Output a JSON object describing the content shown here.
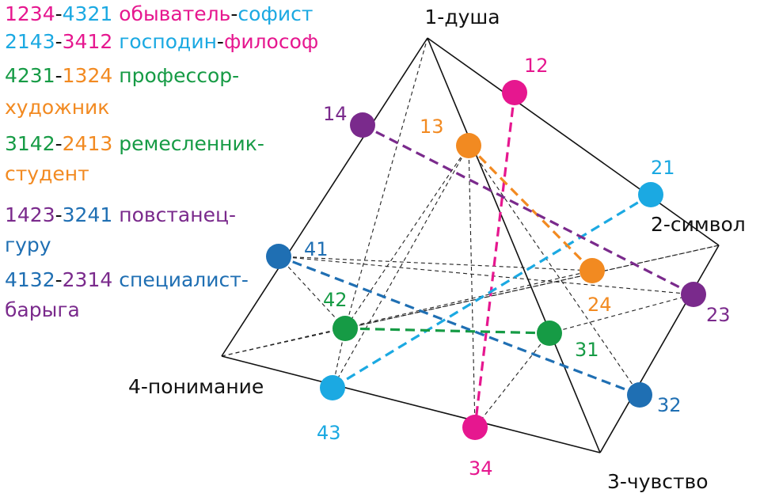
{
  "colors": {
    "magenta": "#e6178f",
    "cyan": "#1ba9e2",
    "green": "#169b45",
    "orange": "#f28a21",
    "purple": "#7a2a8c",
    "blue": "#1f6fb3",
    "black": "#111111"
  },
  "legend": [
    {
      "lines": [
        [
          {
            "t": "1234",
            "c": "magenta"
          },
          {
            "t": "-",
            "c": "black"
          },
          {
            "t": "4321",
            "c": "cyan"
          },
          {
            "t": " обыватель",
            "c": "magenta"
          },
          {
            "t": "-",
            "c": "black"
          },
          {
            "t": "софист",
            "c": "cyan"
          }
        ]
      ]
    },
    {
      "lines": [
        [
          {
            "t": "2143",
            "c": "cyan"
          },
          {
            "t": "-",
            "c": "black"
          },
          {
            "t": "3412",
            "c": "magenta"
          },
          {
            "t": " господин",
            "c": "cyan"
          },
          {
            "t": "-",
            "c": "black"
          },
          {
            "t": "философ",
            "c": "magenta"
          }
        ]
      ]
    },
    {
      "lines": [
        [
          {
            "t": "4231",
            "c": "green"
          },
          {
            "t": "-",
            "c": "black"
          },
          {
            "t": "1324",
            "c": "orange"
          },
          {
            "t": " профессор-",
            "c": "green"
          }
        ],
        [
          {
            "t": "художник",
            "c": "orange"
          }
        ]
      ]
    },
    {
      "lines": [
        [
          {
            "t": "3142",
            "c": "green"
          },
          {
            "t": "-",
            "c": "black"
          },
          {
            "t": "2413",
            "c": "orange"
          },
          {
            "t": " ремесленник-",
            "c": "green"
          }
        ],
        [
          {
            "t": "студент",
            "c": "orange"
          }
        ]
      ]
    },
    {
      "lines": [
        [
          {
            "t": "1423",
            "c": "purple"
          },
          {
            "t": "-",
            "c": "black"
          },
          {
            "t": "3241",
            "c": "blue"
          },
          {
            "t": " повстанец-",
            "c": "purple"
          }
        ],
        [
          {
            "t": "гуру",
            "c": "blue"
          }
        ]
      ]
    },
    {
      "lines": [
        [
          {
            "t": "4132",
            "c": "blue"
          },
          {
            "t": "-",
            "c": "black"
          },
          {
            "t": "2314",
            "c": "purple"
          },
          {
            "t": " специалист-",
            "c": "blue"
          }
        ],
        [
          {
            "t": "барыга",
            "c": "purple"
          }
        ]
      ]
    }
  ],
  "vertices": [
    {
      "id": "1",
      "label": "1-душа"
    },
    {
      "id": "2",
      "label": "2-символ"
    },
    {
      "id": "3",
      "label": "3-чувство"
    },
    {
      "id": "4",
      "label": "4-понимание"
    }
  ],
  "points": [
    {
      "id": "12",
      "label": "12",
      "color": "magenta"
    },
    {
      "id": "13",
      "label": "13",
      "color": "orange"
    },
    {
      "id": "14",
      "label": "14",
      "color": "purple"
    },
    {
      "id": "21",
      "label": "21",
      "color": "cyan"
    },
    {
      "id": "23",
      "label": "23",
      "color": "purple"
    },
    {
      "id": "24",
      "label": "24",
      "color": "orange"
    },
    {
      "id": "31",
      "label": "31",
      "color": "green"
    },
    {
      "id": "32",
      "label": "32",
      "color": "blue"
    },
    {
      "id": "34",
      "label": "34",
      "color": "magenta"
    },
    {
      "id": "41",
      "label": "41",
      "color": "blue"
    },
    {
      "id": "42",
      "label": "42",
      "color": "green"
    },
    {
      "id": "43",
      "label": "43",
      "color": "cyan"
    }
  ],
  "connections": [
    {
      "from": "12",
      "to": "34",
      "color": "magenta"
    },
    {
      "from": "21",
      "to": "43",
      "color": "cyan"
    },
    {
      "from": "13",
      "to": "24",
      "color": "orange"
    },
    {
      "from": "42",
      "to": "31",
      "color": "green"
    },
    {
      "from": "14",
      "to": "23",
      "color": "purple"
    },
    {
      "from": "41",
      "to": "32",
      "color": "blue"
    }
  ]
}
